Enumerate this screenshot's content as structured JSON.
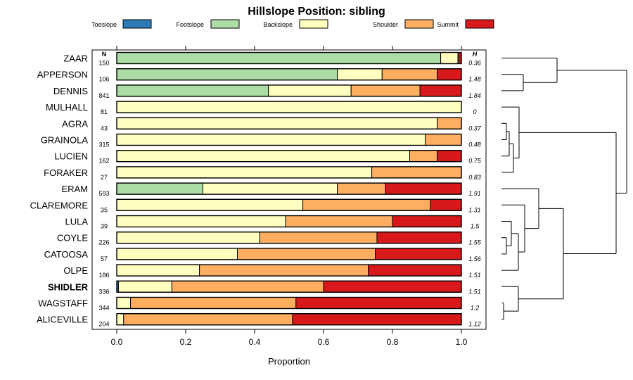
{
  "chart_data": {
    "type": "bar",
    "stacked": true,
    "orientation": "horizontal",
    "title": "Hillslope Position: sibling",
    "xlabel": "Proportion",
    "xlim": [
      0,
      1
    ],
    "xticks": [
      "0.0",
      "0.2",
      "0.4",
      "0.6",
      "0.8",
      "1.0"
    ],
    "n_header": "N",
    "h_header": "H",
    "legend_position": "top",
    "highlight": "SHIDLER",
    "legend": [
      {
        "name": "Toeslope",
        "color": "#2c7bb6"
      },
      {
        "name": "Footslope",
        "color": "#abdda4"
      },
      {
        "name": "Backslope",
        "color": "#ffffbf"
      },
      {
        "name": "Shoulder",
        "color": "#fdae61"
      },
      {
        "name": "Summit",
        "color": "#d7191c"
      }
    ],
    "rows": [
      {
        "name": "ZAAR",
        "n": "150",
        "h": "0.36",
        "values": [
          0,
          0.94,
          0.05,
          0.003,
          0.007
        ]
      },
      {
        "name": "APPERSON",
        "n": "106",
        "h": "1.48",
        "values": [
          0,
          0.64,
          0.13,
          0.16,
          0.07
        ]
      },
      {
        "name": "DENNIS",
        "n": "841",
        "h": "1.84",
        "values": [
          0,
          0.44,
          0.24,
          0.2,
          0.12
        ]
      },
      {
        "name": "MULHALL",
        "n": "81",
        "h": "0",
        "values": [
          0,
          0,
          1.0,
          0,
          0
        ]
      },
      {
        "name": "AGRA",
        "n": "43",
        "h": "0.37",
        "values": [
          0,
          0,
          0.93,
          0.07,
          0
        ]
      },
      {
        "name": "GRAINOLA",
        "n": "315",
        "h": "0.48",
        "values": [
          0,
          0,
          0.895,
          0.105,
          0
        ]
      },
      {
        "name": "LUCIEN",
        "n": "162",
        "h": "0.75",
        "values": [
          0,
          0,
          0.85,
          0.08,
          0.07
        ]
      },
      {
        "name": "FORAKER",
        "n": "27",
        "h": "0.83",
        "values": [
          0,
          0,
          0.74,
          0.26,
          0
        ]
      },
      {
        "name": "ERAM",
        "n": "593",
        "h": "1.91",
        "values": [
          0,
          0.25,
          0.39,
          0.14,
          0.22
        ]
      },
      {
        "name": "CLAREMORE",
        "n": "35",
        "h": "1.31",
        "values": [
          0,
          0,
          0.54,
          0.37,
          0.09
        ]
      },
      {
        "name": "LULA",
        "n": "39",
        "h": "1.5",
        "values": [
          0,
          0,
          0.49,
          0.31,
          0.2
        ]
      },
      {
        "name": "COYLE",
        "n": "226",
        "h": "1.55",
        "values": [
          0,
          0,
          0.415,
          0.34,
          0.245
        ]
      },
      {
        "name": "CATOOSA",
        "n": "57",
        "h": "1.56",
        "values": [
          0,
          0,
          0.35,
          0.4,
          0.25
        ]
      },
      {
        "name": "OLPE",
        "n": "186",
        "h": "1.51",
        "values": [
          0,
          0,
          0.24,
          0.49,
          0.27
        ]
      },
      {
        "name": "SHIDLER",
        "n": "336",
        "h": "1.51",
        "values": [
          0.005,
          0,
          0.155,
          0.44,
          0.4
        ]
      },
      {
        "name": "WAGSTAFF",
        "n": "344",
        "h": "1.2",
        "values": [
          0,
          0,
          0.04,
          0.48,
          0.48
        ]
      },
      {
        "name": "ALICEVILLE",
        "n": "204",
        "h": "1.12",
        "values": [
          0,
          0,
          0.02,
          0.49,
          0.49
        ]
      }
    ],
    "dendrogram": {
      "groups": [
        [
          "ZAAR",
          "APPERSON",
          "DENNIS"
        ],
        [
          "MULHALL",
          "AGRA",
          "GRAINOLA",
          "LUCIEN",
          "FORAKER"
        ],
        [
          "ERAM",
          "CLAREMORE",
          "LULA",
          "COYLE",
          "CATOOSA",
          "OLPE"
        ],
        [
          "SHIDLER",
          "WAGSTAFF",
          "ALICEVILLE"
        ]
      ]
    }
  }
}
